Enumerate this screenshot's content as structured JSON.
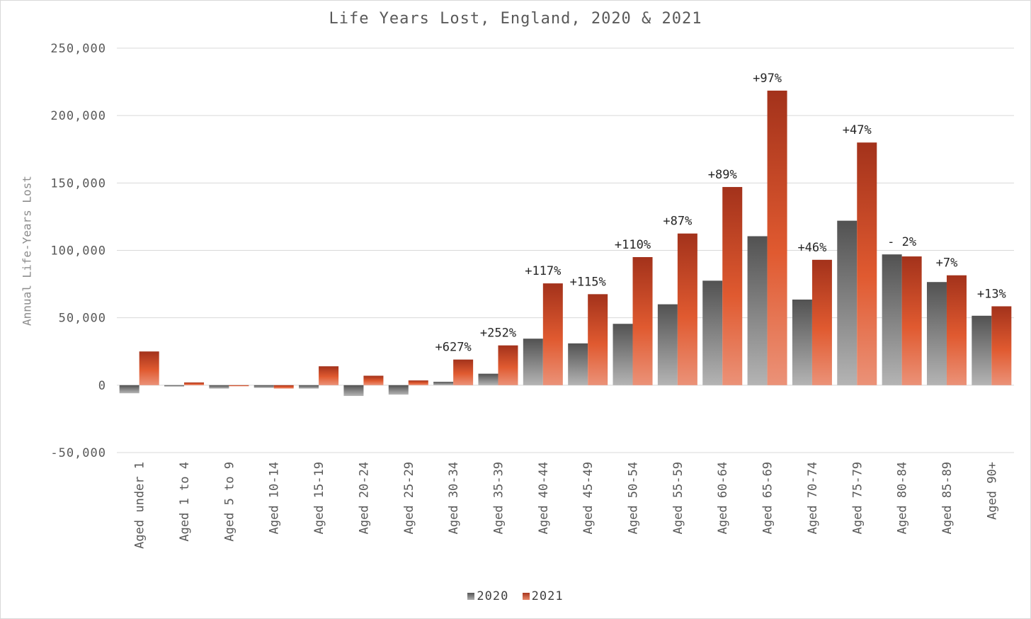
{
  "chart_data": {
    "type": "bar",
    "title": "Life Years Lost, England, 2020 & 2021",
    "ylabel": "Annual Life-Years Lost",
    "xlabel": "",
    "ylim": [
      -50000,
      250000
    ],
    "yticks": [
      250000,
      200000,
      150000,
      100000,
      50000,
      0,
      -50000
    ],
    "ytick_labels": [
      "250,000",
      "200,000",
      "150,000",
      "100,000",
      "50,000",
      "0",
      "-50,000"
    ],
    "grid": true,
    "legend_position": "bottom",
    "categories": [
      "Aged under 1",
      "Aged 1 to 4",
      "Aged 5 to 9",
      "Aged 10-14",
      "Aged 15-19",
      "Aged 20-24",
      "Aged 25-29",
      "Aged 30-34",
      "Aged 35-39",
      "Aged 40-44",
      "Aged 45-49",
      "Aged 50-54",
      "Aged 55-59",
      "Aged 60-64",
      "Aged 65-69",
      "Aged 70-74",
      "Aged 75-79",
      "Aged 80-84",
      "Aged 85-89",
      "Aged 90+"
    ],
    "series": [
      {
        "name": "2020",
        "values": [
          -6000,
          -1000,
          -2500,
          -2000,
          -2500,
          -8000,
          -7000,
          2500,
          8500,
          34500,
          31000,
          45500,
          60000,
          77500,
          110500,
          63500,
          122000,
          97000,
          76500,
          51500
        ]
      },
      {
        "name": "2021",
        "values": [
          25000,
          2000,
          -500,
          -2500,
          14000,
          7000,
          3500,
          19000,
          29500,
          75500,
          67500,
          95000,
          112500,
          147000,
          218500,
          93000,
          180000,
          95500,
          81500,
          58500
        ]
      }
    ],
    "annotations": [
      "",
      "",
      "",
      "",
      "",
      "",
      "",
      "+627%",
      "+252%",
      "+117%",
      "+115%",
      "+110%",
      "+87%",
      "+89%",
      "+97%",
      "+46%",
      "+47%",
      "- 2%",
      "+7%",
      "+13%"
    ],
    "colors": {
      "2020": "#595959",
      "2021": "#c0401f"
    }
  }
}
